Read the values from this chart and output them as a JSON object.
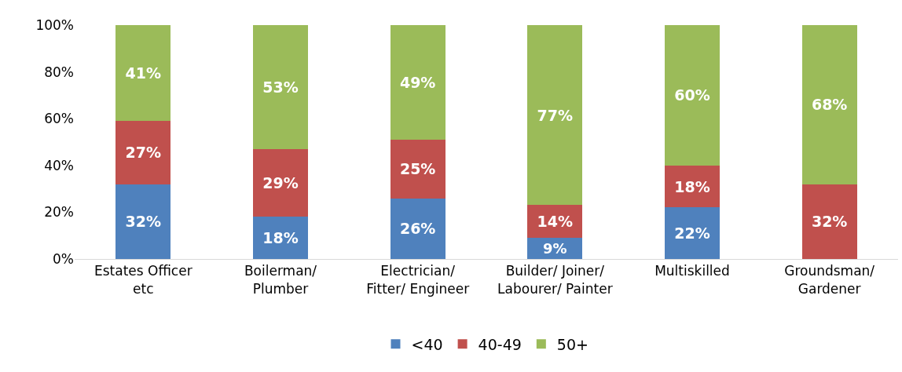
{
  "chart_data": {
    "type": "bar",
    "stacked": true,
    "categories": [
      "Estates Officer etc",
      "Boilerman/ Plumber",
      "Electrician/ Fitter/ Engineer",
      "Builder/ Joiner/ Labourer/ Painter",
      "Multiskilled",
      "Groundsman/ Gardener"
    ],
    "series": [
      {
        "name": "<40",
        "color": "#4f81bd",
        "values": [
          32,
          18,
          26,
          9,
          22,
          null
        ],
        "value_labels": [
          "32%",
          "18%",
          "26%",
          "9%",
          "22%",
          null
        ]
      },
      {
        "name": "40-49",
        "color": "#c0504d",
        "values": [
          27,
          29,
          25,
          14,
          18,
          32
        ],
        "value_labels": [
          "27%",
          "29%",
          "25%",
          "14%",
          "18%",
          "32%"
        ]
      },
      {
        "name": "50+",
        "color": "#9bbb59",
        "values": [
          41,
          53,
          49,
          77,
          60,
          68
        ],
        "value_labels": [
          "41%",
          "53%",
          "49%",
          "77%",
          "60%",
          "68%"
        ]
      }
    ],
    "ylim": [
      0,
      100
    ],
    "yticks": [
      {
        "value": 0,
        "label": "0%"
      },
      {
        "value": 20,
        "label": "20%"
      },
      {
        "value": 40,
        "label": "40%"
      },
      {
        "value": 60,
        "label": "60%"
      },
      {
        "value": 80,
        "label": "80%"
      },
      {
        "value": 100,
        "label": "100%"
      }
    ],
    "legend": "bottom"
  }
}
